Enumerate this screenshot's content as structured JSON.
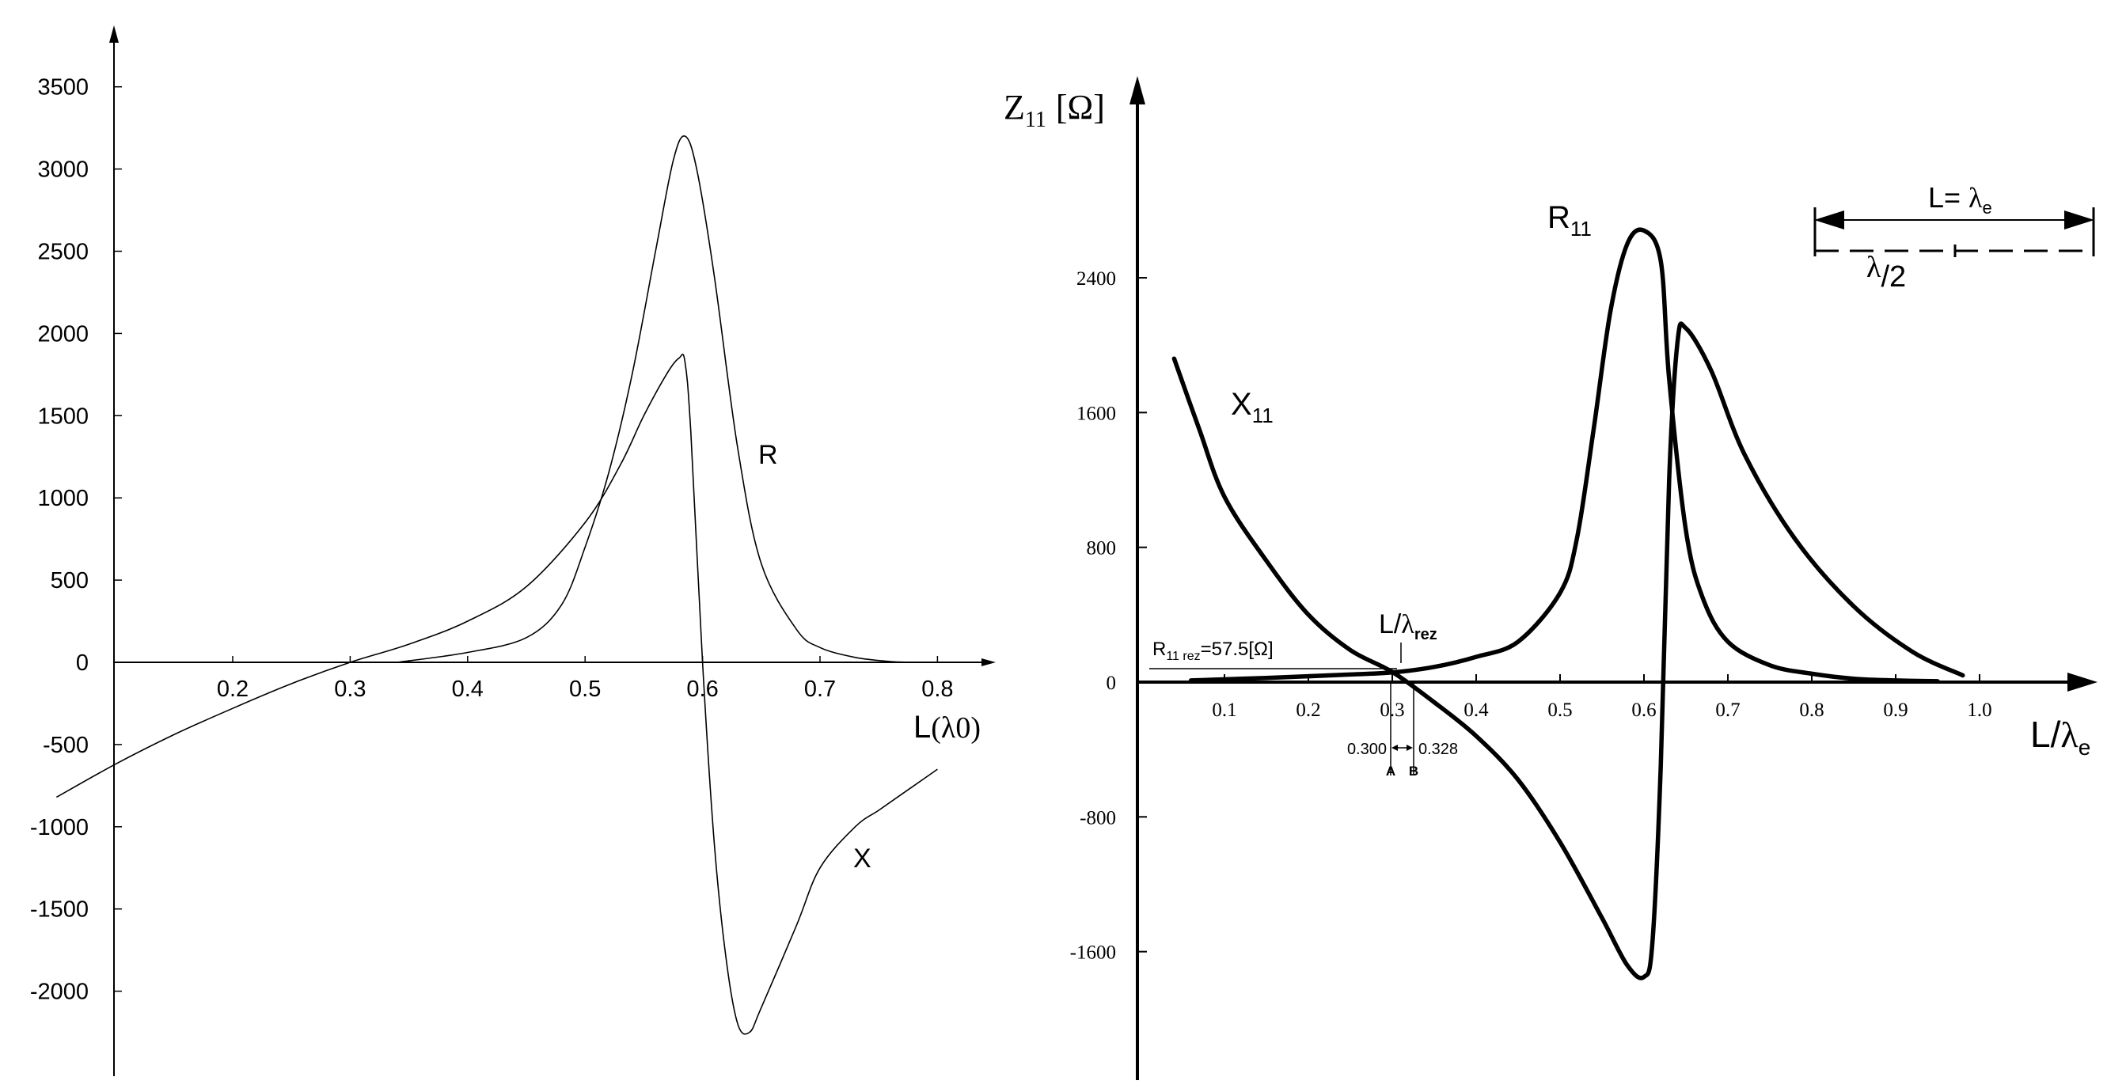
{
  "chart_data": [
    {
      "type": "line",
      "title": "",
      "xlabel": "L(λ0)",
      "ylabel": "",
      "xlim": [
        0.05,
        0.85
      ],
      "ylim": [
        -2500,
        3500
      ],
      "x_ticks": [
        "0.2",
        "0.3",
        "0.4",
        "0.5",
        "0.6",
        "0.7",
        "0.8"
      ],
      "y_ticks": [
        "3500",
        "3000",
        "2500",
        "2000",
        "1500",
        "1000",
        "500",
        "0",
        "-500",
        "-1000",
        "-1500",
        "-2000"
      ],
      "grid": false,
      "series": [
        {
          "name": "R",
          "x": [
            0.34,
            0.4,
            0.45,
            0.48,
            0.5,
            0.52,
            0.54,
            0.56,
            0.575,
            0.585,
            0.595,
            0.61,
            0.63,
            0.65,
            0.68,
            0.7,
            0.73,
            0.76,
            0.78
          ],
          "y": [
            0,
            60,
            150,
            350,
            700,
            1150,
            1750,
            2500,
            3050,
            3200,
            3000,
            2350,
            1300,
            600,
            200,
            90,
            30,
            5,
            0
          ]
        },
        {
          "name": "X",
          "x": [
            0.05,
            0.1,
            0.15,
            0.2,
            0.25,
            0.3,
            0.35,
            0.4,
            0.45,
            0.5,
            0.53,
            0.55,
            0.57,
            0.58,
            0.585,
            0.59,
            0.6,
            0.61,
            0.62,
            0.63,
            0.64,
            0.65,
            0.68,
            0.7,
            0.73,
            0.75,
            0.77,
            0.79,
            0.8
          ],
          "y": [
            -820,
            -620,
            -440,
            -280,
            -130,
            0,
            110,
            250,
            460,
            850,
            1200,
            1500,
            1760,
            1850,
            1830,
            1400,
            0,
            -1100,
            -1800,
            -2200,
            -2250,
            -2100,
            -1600,
            -1250,
            -1000,
            -900,
            -800,
            -700,
            -650
          ]
        }
      ]
    },
    {
      "type": "line",
      "title": "",
      "xlabel": "L/λe",
      "ylabel": "Z11 [Ω]",
      "xlim": [
        0.0,
        1.1
      ],
      "ylim": [
        -1800,
        2800
      ],
      "x_ticks": [
        "0.1",
        "0.2",
        "0.3",
        "0.4",
        "0.5",
        "0.6",
        "0.7",
        "0.8",
        "0.9",
        "1.0"
      ],
      "y_ticks": [
        "2400",
        "1600",
        "800",
        "0",
        "-800",
        "-1600"
      ],
      "grid": false,
      "series": [
        {
          "name": "R11",
          "x": [
            0.06,
            0.15,
            0.25,
            0.3,
            0.35,
            0.4,
            0.45,
            0.5,
            0.52,
            0.54,
            0.56,
            0.58,
            0.6,
            0.62,
            0.63,
            0.65,
            0.67,
            0.7,
            0.75,
            0.8,
            0.85,
            0.9,
            0.95
          ],
          "y": [
            10,
            25,
            45,
            57.5,
            90,
            150,
            240,
            530,
            850,
            1500,
            2200,
            2600,
            2680,
            2500,
            1800,
            900,
            500,
            240,
            100,
            50,
            20,
            10,
            5
          ]
        },
        {
          "name": "X11",
          "x": [
            0.04,
            0.07,
            0.1,
            0.15,
            0.2,
            0.25,
            0.3,
            0.35,
            0.4,
            0.45,
            0.5,
            0.55,
            0.58,
            0.6,
            0.61,
            0.62,
            0.63,
            0.64,
            0.65,
            0.68,
            0.72,
            0.78,
            0.85,
            0.92,
            0.98
          ],
          "y": [
            1920,
            1500,
            1100,
            720,
            400,
            190,
            60,
            -120,
            -320,
            -580,
            -950,
            -1400,
            -1680,
            -1750,
            -1550,
            -500,
            1200,
            2020,
            2100,
            1850,
            1350,
            850,
            450,
            180,
            40
          ]
        }
      ],
      "annotations": {
        "r_rez": "R11 rez=57.5[Ω]",
        "l_rez": "L/λrez",
        "point_a_value": "0.300",
        "point_b_value": "0.328",
        "point_a_label": "A",
        "point_b_label": "B",
        "scale_label_top": "L= λe",
        "scale_label_bottom": "λ/2"
      }
    }
  ],
  "labels": {
    "left": {
      "r_series": "R",
      "x_series": "X",
      "x_axis_name": "L",
      "x_axis_unit": "(λ0)"
    },
    "right": {
      "y_axis_symbol": "Z",
      "y_axis_sub": "11",
      "y_axis_unit": "[Ω]",
      "r_symbol": "R",
      "r_sub": "11",
      "x_symbol": "X",
      "x_sub": "11",
      "x_axis_pre": "L/",
      "x_axis_lambda": "λ",
      "x_axis_sub": "e",
      "rrez_main": "R",
      "rrez_sub": "11 rez",
      "rrez_value": "=57.5[Ω]",
      "lrez_pre": "L/",
      "lrez_lambda": "λ",
      "lrez_sub": "rez",
      "scale_top_pre": "L= ",
      "scale_top_lambda": "λ",
      "scale_top_sub": "e",
      "scale_bottom_lambda": "λ",
      "scale_bottom_post": "/2"
    }
  }
}
